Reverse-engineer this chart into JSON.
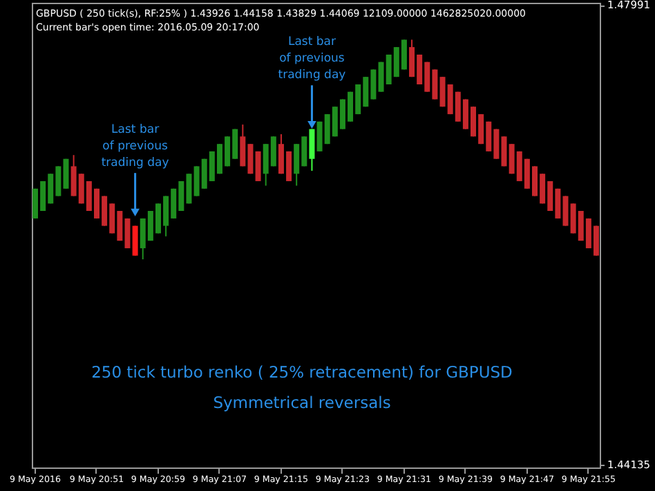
{
  "chart_data": {
    "type": "candlestick",
    "title": "GBPUSD ( 250 tick(s), RF:25% ) 1.43926 1.44158 1.43829 1.44069 12109.00000 1462825020.00000",
    "subtitle": "Current bar's open time: 2016.05.09 20:17:00",
    "categories": [
      "9 May 2016",
      null,
      null,
      null,
      null,
      null,
      null,
      null,
      "9 May 20:51",
      null,
      null,
      null,
      null,
      null,
      null,
      null,
      "9 May 20:59",
      null,
      null,
      null,
      null,
      null,
      null,
      null,
      "9 May 21:07",
      null,
      null,
      null,
      null,
      null,
      null,
      null,
      "9 May 21:15",
      null,
      null,
      null,
      null,
      null,
      null,
      null,
      "9 May 21:23",
      null,
      null,
      null,
      null,
      null,
      null,
      null,
      "9 May 21:31",
      null,
      null,
      null,
      null,
      null,
      null,
      null,
      "9 May 21:39",
      null,
      null,
      null,
      null,
      null,
      null,
      null,
      "9 May 21:47",
      null,
      null,
      null,
      null,
      null,
      null,
      null,
      "9 May 21:55",
      null
    ],
    "ohlc": [
      [
        1.462,
        1.4645,
        1.462,
        1.4645
      ],
      [
        1.46263,
        1.46513,
        1.46263,
        1.46513
      ],
      [
        1.46325,
        1.46575,
        1.46325,
        1.46575
      ],
      [
        1.46388,
        1.46638,
        1.46388,
        1.46638
      ],
      [
        1.4645,
        1.467,
        1.4645,
        1.467
      ],
      [
        1.46638,
        1.46732,
        1.46388,
        1.46388
      ],
      [
        1.46575,
        1.46575,
        1.46325,
        1.46325
      ],
      [
        1.46513,
        1.46513,
        1.46263,
        1.46263
      ],
      [
        1.4645,
        1.4645,
        1.462,
        1.462
      ],
      [
        1.46388,
        1.46388,
        1.46138,
        1.46138
      ],
      [
        1.46325,
        1.46325,
        1.46075,
        1.46075
      ],
      [
        1.46263,
        1.46263,
        1.46013,
        1.46013
      ],
      [
        1.462,
        1.462,
        1.4595,
        1.4595
      ],
      [
        1.46138,
        1.46138,
        1.45888,
        1.45888
      ],
      [
        1.4595,
        1.462,
        1.45857,
        1.462
      ],
      [
        1.46013,
        1.46263,
        1.46013,
        1.46263
      ],
      [
        1.46075,
        1.46325,
        1.46075,
        1.46325
      ],
      [
        1.46138,
        1.46388,
        1.4605,
        1.46388
      ],
      [
        1.462,
        1.4645,
        1.462,
        1.4645
      ],
      [
        1.46263,
        1.46513,
        1.46263,
        1.46513
      ],
      [
        1.46325,
        1.46575,
        1.46325,
        1.46575
      ],
      [
        1.46388,
        1.46638,
        1.46388,
        1.46638
      ],
      [
        1.4645,
        1.467,
        1.4645,
        1.467
      ],
      [
        1.46513,
        1.46763,
        1.46513,
        1.46763
      ],
      [
        1.46575,
        1.46825,
        1.46575,
        1.46825
      ],
      [
        1.46638,
        1.46888,
        1.46638,
        1.46888
      ],
      [
        1.467,
        1.4695,
        1.467,
        1.4695
      ],
      [
        1.46888,
        1.46988,
        1.46638,
        1.46638
      ],
      [
        1.46825,
        1.46825,
        1.46575,
        1.46575
      ],
      [
        1.46763,
        1.46763,
        1.46513,
        1.46513
      ],
      [
        1.46575,
        1.46825,
        1.46475,
        1.46825
      ],
      [
        1.46638,
        1.46888,
        1.46638,
        1.46888
      ],
      [
        1.46825,
        1.46907,
        1.46575,
        1.46575
      ],
      [
        1.46763,
        1.46763,
        1.46513,
        1.46513
      ],
      [
        1.46575,
        1.46825,
        1.46475,
        1.46825
      ],
      [
        1.46638,
        1.46888,
        1.46638,
        1.46888
      ],
      [
        1.467,
        1.4695,
        1.466,
        1.4695
      ],
      [
        1.46763,
        1.47013,
        1.46763,
        1.47013
      ],
      [
        1.46825,
        1.47075,
        1.46825,
        1.47075
      ],
      [
        1.46888,
        1.47138,
        1.46888,
        1.47138
      ],
      [
        1.4695,
        1.472,
        1.4695,
        1.472
      ],
      [
        1.47013,
        1.47263,
        1.47013,
        1.47263
      ],
      [
        1.47075,
        1.47325,
        1.47075,
        1.47325
      ],
      [
        1.47138,
        1.47388,
        1.47138,
        1.47388
      ],
      [
        1.472,
        1.4745,
        1.472,
        1.4745
      ],
      [
        1.47263,
        1.47513,
        1.47263,
        1.47513
      ],
      [
        1.47325,
        1.47575,
        1.47325,
        1.47575
      ],
      [
        1.47388,
        1.47638,
        1.47388,
        1.47638
      ],
      [
        1.4745,
        1.477,
        1.4745,
        1.477
      ],
      [
        1.47638,
        1.477,
        1.47388,
        1.47388
      ],
      [
        1.47575,
        1.47575,
        1.47325,
        1.47325
      ],
      [
        1.47513,
        1.47513,
        1.47263,
        1.47263
      ],
      [
        1.4745,
        1.4745,
        1.472,
        1.472
      ],
      [
        1.47388,
        1.47388,
        1.47138,
        1.47138
      ],
      [
        1.47325,
        1.47325,
        1.47075,
        1.47075
      ],
      [
        1.47263,
        1.47263,
        1.47013,
        1.47013
      ],
      [
        1.472,
        1.472,
        1.4695,
        1.4695
      ],
      [
        1.47138,
        1.47138,
        1.46888,
        1.46888
      ],
      [
        1.47075,
        1.47075,
        1.46825,
        1.46825
      ],
      [
        1.47013,
        1.47013,
        1.46763,
        1.46763
      ],
      [
        1.4695,
        1.4695,
        1.467,
        1.467
      ],
      [
        1.46888,
        1.46888,
        1.46638,
        1.46638
      ],
      [
        1.46825,
        1.46825,
        1.46575,
        1.46575
      ],
      [
        1.46763,
        1.46763,
        1.46513,
        1.46513
      ],
      [
        1.467,
        1.467,
        1.4645,
        1.4645
      ],
      [
        1.46638,
        1.46638,
        1.46388,
        1.46388
      ],
      [
        1.46575,
        1.46575,
        1.46325,
        1.46325
      ],
      [
        1.46513,
        1.46513,
        1.46263,
        1.46263
      ],
      [
        1.4645,
        1.4645,
        1.462,
        1.462
      ],
      [
        1.46388,
        1.46388,
        1.46138,
        1.46138
      ],
      [
        1.46325,
        1.46325,
        1.46075,
        1.46075
      ],
      [
        1.46263,
        1.46263,
        1.46013,
        1.46013
      ],
      [
        1.462,
        1.462,
        1.4595,
        1.4595
      ],
      [
        1.46138,
        1.46138,
        1.45888,
        1.45888
      ]
    ],
    "colors": [
      "#1f8f1f",
      "#1f8f1f",
      "#1f8f1f",
      "#1f8f1f",
      "#1f8f1f",
      "#c8282d",
      "#c8282d",
      "#c8282d",
      "#c8282d",
      "#c8282d",
      "#c8282d",
      "#c8282d",
      "#c8282d",
      "#ff1a1a",
      "#1f8f1f",
      "#1f8f1f",
      "#1f8f1f",
      "#1f8f1f",
      "#1f8f1f",
      "#1f8f1f",
      "#1f8f1f",
      "#1f8f1f",
      "#1f8f1f",
      "#1f8f1f",
      "#1f8f1f",
      "#1f8f1f",
      "#1f8f1f",
      "#c8282d",
      "#c8282d",
      "#c8282d",
      "#1f8f1f",
      "#1f8f1f",
      "#c8282d",
      "#c8282d",
      "#1f8f1f",
      "#1f8f1f",
      "#40ff40",
      "#1f8f1f",
      "#1f8f1f",
      "#1f8f1f",
      "#1f8f1f",
      "#1f8f1f",
      "#1f8f1f",
      "#1f8f1f",
      "#1f8f1f",
      "#1f8f1f",
      "#1f8f1f",
      "#1f8f1f",
      "#1f8f1f",
      "#c8282d",
      "#c8282d",
      "#c8282d",
      "#c8282d",
      "#c8282d",
      "#c8282d",
      "#c8282d",
      "#c8282d",
      "#c8282d",
      "#c8282d",
      "#c8282d",
      "#c8282d",
      "#c8282d",
      "#c8282d",
      "#c8282d",
      "#c8282d",
      "#c8282d",
      "#c8282d",
      "#c8282d",
      "#c8282d",
      "#c8282d",
      "#c8282d",
      "#c8282d",
      "#c8282d",
      "#c8282d"
    ],
    "ylim": [
      1.4411,
      1.4801
    ],
    "yticks": [
      1.47991,
      1.44135
    ],
    "annotations": [
      {
        "text": "Last bar of previous trading day",
        "y": 1.4625
      },
      {
        "text": "Last bar of previous trading day",
        "y": 1.46986
      },
      "250 tick turbo renko ( 25% retracement) for GBPUSD",
      "Symmetrical reversals"
    ]
  }
}
